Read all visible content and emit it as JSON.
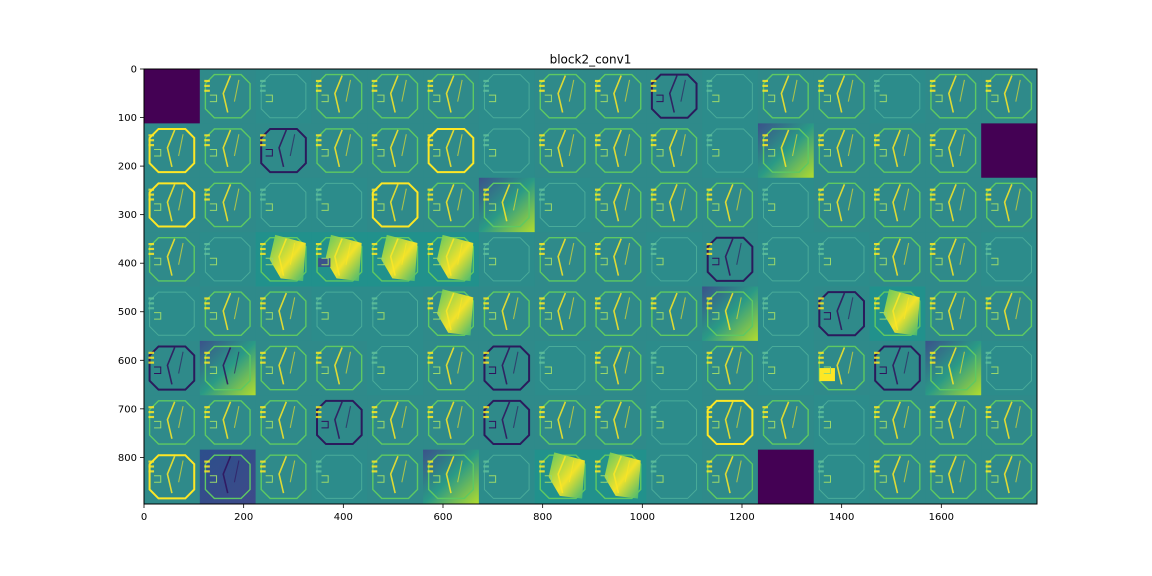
{
  "chart_data": {
    "type": "heatmap",
    "title": "block2_conv1",
    "subtitle": "",
    "xlabel": "",
    "ylabel": "",
    "xlim": [
      0,
      1792
    ],
    "ylim": [
      896,
      0
    ],
    "x_ticks": [
      0,
      200,
      400,
      600,
      800,
      1000,
      1200,
      1400,
      1600
    ],
    "y_ticks": [
      0,
      100,
      200,
      300,
      400,
      500,
      600,
      700,
      800
    ],
    "grid": false,
    "legend": "none",
    "colormap": "viridis",
    "tile_size": 112,
    "grid_rows": 8,
    "grid_cols": 16,
    "tiles": [
      [
        "dark",
        "mid",
        "flat",
        "mid",
        "mid",
        "mid",
        "flat",
        "mid",
        "mid",
        "dark-lines",
        "flat",
        "mid",
        "mid",
        "flat",
        "mid",
        "mid"
      ],
      [
        "bright-lines",
        "mid",
        "dark-lines",
        "mid",
        "mid",
        "bright-lines",
        "flat",
        "mid",
        "mid",
        "mid",
        "flat",
        "gradient",
        "mid",
        "mid",
        "mid",
        "dark"
      ],
      [
        "bright-lines",
        "mid",
        "flat",
        "flat",
        "bright-lines",
        "mid",
        "gradient",
        "flat",
        "mid",
        "mid",
        "mid",
        "flat",
        "mid",
        "mid",
        "mid",
        "mid"
      ],
      [
        "mid",
        "flat",
        "bright-patch",
        "bright-block",
        "bright-patch",
        "bright-patch",
        "flat",
        "mid",
        "mid",
        "flat",
        "dark-lines",
        "flat",
        "flat",
        "mid",
        "mid",
        "flat"
      ],
      [
        "flat",
        "mid",
        "mid",
        "flat",
        "flat",
        "dark-bright",
        "mid",
        "mid",
        "mid",
        "mid",
        "gradient",
        "flat",
        "dark-lines",
        "bright-patch",
        "mid",
        "mid"
      ],
      [
        "dark-lines",
        "dark-gradient",
        "mid",
        "mid",
        "flat",
        "mid",
        "dark-lines",
        "flat",
        "mid",
        "flat",
        "mid",
        "flat",
        "bright-square",
        "dark-lines",
        "gradient",
        "flat"
      ],
      [
        "mid",
        "mid",
        "mid",
        "dark-lines",
        "mid",
        "mid",
        "dark-lines",
        "mid",
        "mid",
        "flat",
        "bright-lines",
        "mid",
        "flat",
        "mid",
        "mid",
        "mid"
      ],
      [
        "bright-lines",
        "dark-block",
        "mid",
        "flat",
        "mid",
        "gradient",
        "flat",
        "bright-patch",
        "bright-patch",
        "flat",
        "mid",
        "dark",
        "flat",
        "mid",
        "mid",
        "mid"
      ]
    ],
    "colors": {
      "dark": "#440154",
      "dark_blue": "#3b528b",
      "mid": "#2f8a8a",
      "flat": "#2c8c8b",
      "teal": "#21918c",
      "green": "#5ec962",
      "yellow": "#fde725"
    }
  }
}
